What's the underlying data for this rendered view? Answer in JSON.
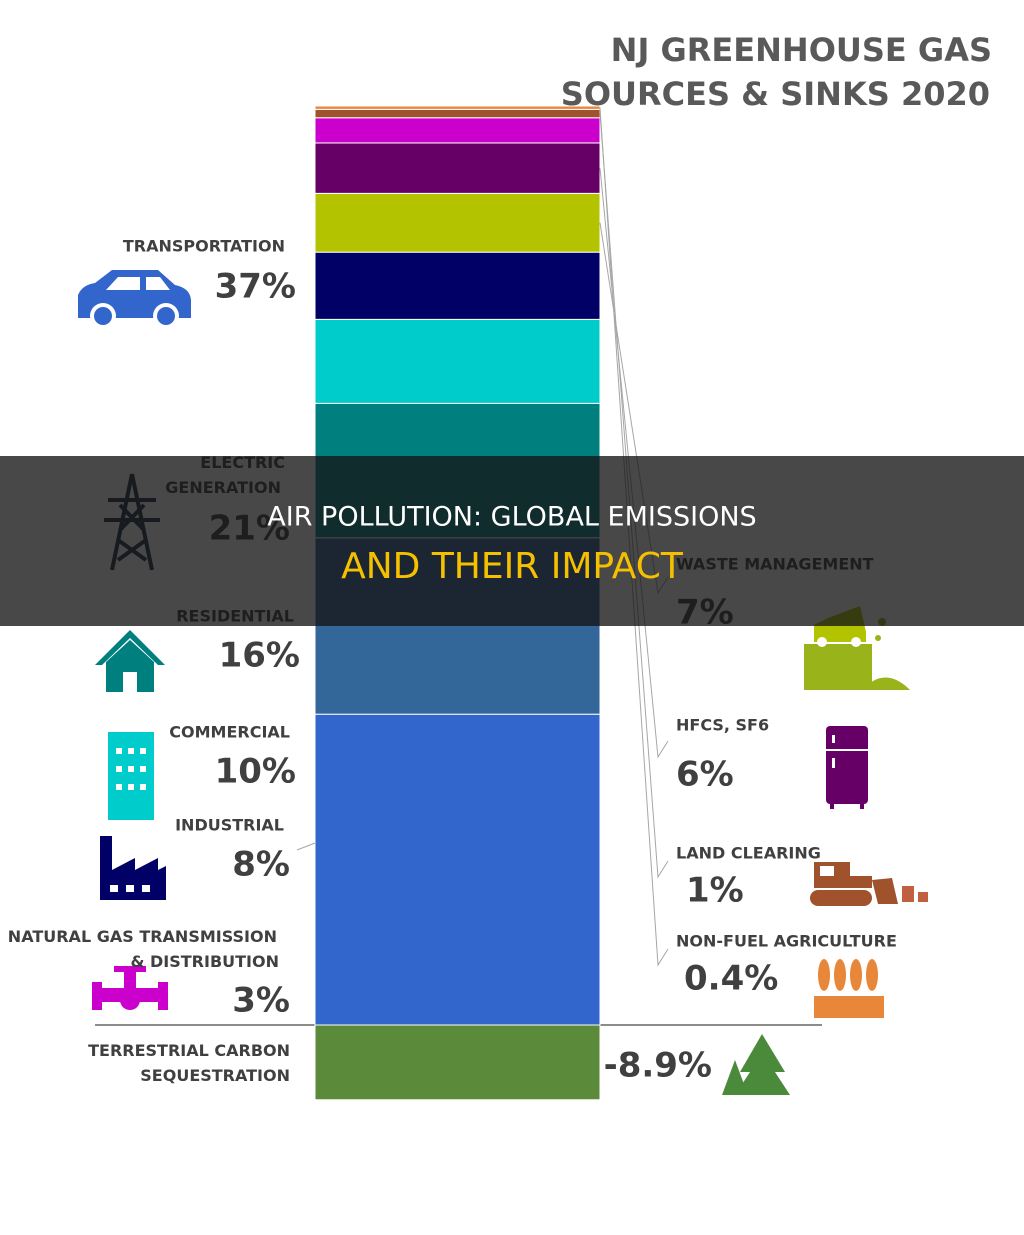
{
  "chart_data": {
    "type": "stacked-bar",
    "title": "NJ GREENHOUSE GAS\nSOURCES & SINKS 2020",
    "series": [
      {
        "name": "TRANSPORTATION",
        "color": "#3366cc",
        "values": [
          37
        ],
        "value_labels": [
          "37%"
        ]
      },
      {
        "name": "ELECTRIC\nGENERATION",
        "color": "#336699",
        "values": [
          21
        ],
        "value_labels": [
          "21%"
        ]
      },
      {
        "name": "RESIDENTIAL",
        "color": "#007f7f",
        "values": [
          16
        ],
        "value_labels": [
          "16%"
        ]
      },
      {
        "name": "COMMERCIAL",
        "color": "#00cccc",
        "values": [
          10
        ],
        "value_labels": [
          "10%"
        ]
      },
      {
        "name": "INDUSTRIAL",
        "color": "#000066",
        "values": [
          8
        ],
        "value_labels": [
          "8%"
        ]
      },
      {
        "name": "WASTE MANAGEMENT",
        "color": "#b3c300",
        "values": [
          7
        ],
        "value_labels": [
          "7%"
        ]
      },
      {
        "name": "HFCS, SF6",
        "color": "#660066",
        "values": [
          6
        ],
        "value_labels": [
          "6%"
        ]
      },
      {
        "name": "NATURAL GAS TRANSMISSION\n& DISTRIBUTION",
        "color": "#cc00cc",
        "values": [
          3
        ],
        "value_labels": [
          "3%"
        ]
      },
      {
        "name": "LAND CLEARING",
        "color": "#a0522d",
        "values": [
          1
        ],
        "value_labels": [
          "1%"
        ]
      },
      {
        "name": "NON-FUEL AGRICULTURE",
        "color": "#e8863a",
        "values": [
          0.4
        ],
        "value_labels": [
          "0.4%"
        ]
      },
      {
        "name": "TERRESTRIAL CARBON\nSEQUESTRATION",
        "color": "#5a8a3a",
        "values": [
          -8.9
        ],
        "value_labels": [
          "-8.9%"
        ]
      }
    ]
  },
  "banner": {
    "lines": [
      "AIR POLLUTION: GLOBAL EMISSIONS",
      "AND THEIR IMPACT"
    ]
  }
}
